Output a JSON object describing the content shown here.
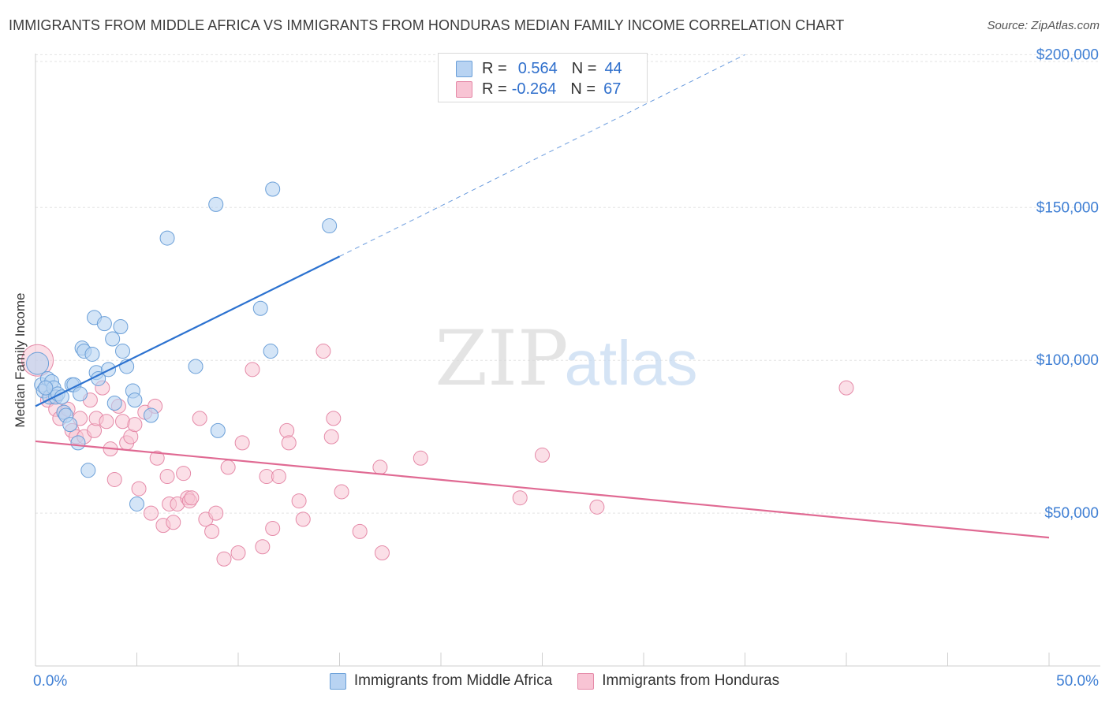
{
  "header": {
    "title": "IMMIGRANTS FROM MIDDLE AFRICA VS IMMIGRANTS FROM HONDURAS MEDIAN FAMILY INCOME CORRELATION CHART",
    "source": "Source: ZipAtlas.com"
  },
  "watermark": {
    "zip": "ZIP",
    "atlas": "atlas"
  },
  "legend_top": {
    "rows": [
      {
        "r_label": "R =",
        "r_value": "0.564",
        "n_label": "N =",
        "n_value": "44"
      },
      {
        "r_label": "R =",
        "r_value": "-0.264",
        "n_label": "N =",
        "n_value": "67"
      }
    ]
  },
  "legend_bottom": {
    "series1": "Immigrants from Middle Africa",
    "series2": "Immigrants from Honduras"
  },
  "colors": {
    "blue_fill": "#b8d3f2",
    "blue_stroke": "#6a9fd8",
    "blue_line": "#2c72d0",
    "pink_fill": "#f8c4d4",
    "pink_stroke": "#e58aa8",
    "pink_line": "#e06a93",
    "axis_label": "#3f7fd4",
    "grid": "#e3e3e3"
  },
  "chart_data": {
    "type": "scatter",
    "title": "IMMIGRANTS FROM MIDDLE AFRICA VS IMMIGRANTS FROM HONDURAS MEDIAN FAMILY INCOME CORRELATION CHART",
    "xlabel": "",
    "ylabel": "Median Family Income",
    "xlim": [
      0,
      50
    ],
    "ylim": [
      0,
      205000
    ],
    "x_tick_labels": [
      "0.0%",
      "50.0%"
    ],
    "y_ticks": [
      50000,
      100000,
      150000,
      200000
    ],
    "y_tick_labels": [
      "$50,000",
      "$100,000",
      "$150,000",
      "$200,000"
    ],
    "legend_position": "top-center",
    "series": [
      {
        "name": "Immigrants from Middle Africa",
        "r": 0.564,
        "n": 44,
        "trend": {
          "x0": 0,
          "y0": 85000,
          "x1": 15,
          "y1": 134000,
          "dashed_to_x": 35,
          "dashed_to_y": 200000
        },
        "points": [
          [
            0.1,
            99000
          ],
          [
            0.3,
            92000
          ],
          [
            0.4,
            90000
          ],
          [
            0.6,
            94000
          ],
          [
            0.7,
            88000
          ],
          [
            0.8,
            93000
          ],
          [
            0.9,
            91000
          ],
          [
            1.0,
            88000
          ],
          [
            1.1,
            89000
          ],
          [
            1.3,
            88000
          ],
          [
            1.4,
            83000
          ],
          [
            1.5,
            82000
          ],
          [
            1.7,
            79000
          ],
          [
            1.8,
            92000
          ],
          [
            1.9,
            92000
          ],
          [
            2.1,
            73000
          ],
          [
            2.2,
            89000
          ],
          [
            2.3,
            104000
          ],
          [
            2.4,
            103000
          ],
          [
            2.6,
            64000
          ],
          [
            2.8,
            102000
          ],
          [
            2.9,
            114000
          ],
          [
            3.0,
            96000
          ],
          [
            3.1,
            94000
          ],
          [
            3.4,
            112000
          ],
          [
            3.6,
            97000
          ],
          [
            3.8,
            107000
          ],
          [
            3.9,
            86000
          ],
          [
            4.2,
            111000
          ],
          [
            4.3,
            103000
          ],
          [
            4.5,
            98000
          ],
          [
            4.8,
            90000
          ],
          [
            4.9,
            87000
          ],
          [
            5.0,
            53000
          ],
          [
            5.7,
            82000
          ],
          [
            6.5,
            140000
          ],
          [
            7.9,
            98000
          ],
          [
            8.9,
            151000
          ],
          [
            9.0,
            77000
          ],
          [
            11.1,
            117000
          ],
          [
            11.6,
            103000
          ],
          [
            11.7,
            156000
          ],
          [
            14.5,
            144000
          ],
          [
            0.5,
            91000
          ]
        ]
      },
      {
        "name": "Immigrants from Honduras",
        "r": -0.264,
        "n": 67,
        "trend": {
          "x0": 0,
          "y0": 73500,
          "x1": 50,
          "y1": 42000
        },
        "points": [
          [
            0.1,
            100000
          ],
          [
            0.5,
            91000
          ],
          [
            0.6,
            87000
          ],
          [
            0.9,
            88000
          ],
          [
            1.0,
            84000
          ],
          [
            1.2,
            81000
          ],
          [
            1.4,
            83000
          ],
          [
            1.6,
            84000
          ],
          [
            1.8,
            77000
          ],
          [
            2.0,
            75000
          ],
          [
            2.2,
            81000
          ],
          [
            2.4,
            75000
          ],
          [
            2.7,
            87000
          ],
          [
            2.9,
            77000
          ],
          [
            3.0,
            81000
          ],
          [
            3.3,
            91000
          ],
          [
            3.5,
            80000
          ],
          [
            3.7,
            71000
          ],
          [
            3.9,
            61000
          ],
          [
            4.1,
            85000
          ],
          [
            4.3,
            80000
          ],
          [
            4.5,
            73000
          ],
          [
            4.7,
            75000
          ],
          [
            4.9,
            79000
          ],
          [
            5.1,
            58000
          ],
          [
            5.4,
            83000
          ],
          [
            5.7,
            50000
          ],
          [
            5.9,
            85000
          ],
          [
            6.0,
            68000
          ],
          [
            6.3,
            46000
          ],
          [
            6.5,
            62000
          ],
          [
            6.6,
            53000
          ],
          [
            6.8,
            47000
          ],
          [
            7.0,
            53000
          ],
          [
            7.3,
            63000
          ],
          [
            7.5,
            55000
          ],
          [
            7.6,
            54000
          ],
          [
            7.7,
            55000
          ],
          [
            8.1,
            81000
          ],
          [
            8.4,
            48000
          ],
          [
            8.7,
            44000
          ],
          [
            8.9,
            50000
          ],
          [
            9.3,
            35000
          ],
          [
            9.5,
            65000
          ],
          [
            10.0,
            37000
          ],
          [
            10.2,
            73000
          ],
          [
            10.7,
            97000
          ],
          [
            11.2,
            39000
          ],
          [
            11.4,
            62000
          ],
          [
            11.7,
            45000
          ],
          [
            12.0,
            62000
          ],
          [
            12.4,
            77000
          ],
          [
            12.5,
            73000
          ],
          [
            13.0,
            54000
          ],
          [
            13.2,
            48000
          ],
          [
            14.2,
            103000
          ],
          [
            14.6,
            75000
          ],
          [
            14.7,
            81000
          ],
          [
            15.1,
            57000
          ],
          [
            16.0,
            44000
          ],
          [
            17.0,
            65000
          ],
          [
            17.1,
            37000
          ],
          [
            19.0,
            68000
          ],
          [
            23.9,
            55000
          ],
          [
            25.0,
            69000
          ],
          [
            27.7,
            52000
          ],
          [
            40.0,
            91000
          ]
        ]
      }
    ]
  }
}
